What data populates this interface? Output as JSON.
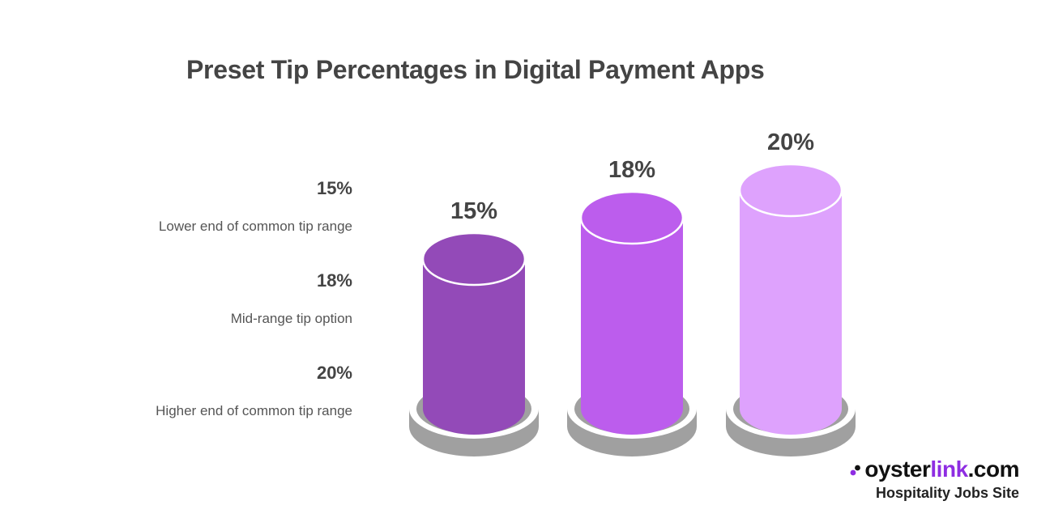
{
  "chart_data": {
    "type": "bar",
    "title": "Preset Tip Percentages in Digital Payment Apps",
    "categories": [
      "15%",
      "18%",
      "20%"
    ],
    "values": [
      15,
      18,
      20
    ],
    "value_labels": [
      "15%",
      "18%",
      "20%"
    ],
    "colors": [
      "#934ab8",
      "#bc5ded",
      "#dea2fd"
    ],
    "base_color": "#a0a0a0",
    "legend": [
      {
        "value": "15%",
        "description": "Lower end of common tip range"
      },
      {
        "value": "18%",
        "description": "Mid-range tip option"
      },
      {
        "value": "20%",
        "description": "Higher end of common tip range"
      }
    ]
  },
  "brand": {
    "name_part1": "oyster",
    "name_part2": "link",
    "name_part3": ".com",
    "tagline": "Hospitality Jobs Site",
    "logo_icon": "oyster-logo-icon",
    "accent_color": "#8e2de2"
  }
}
